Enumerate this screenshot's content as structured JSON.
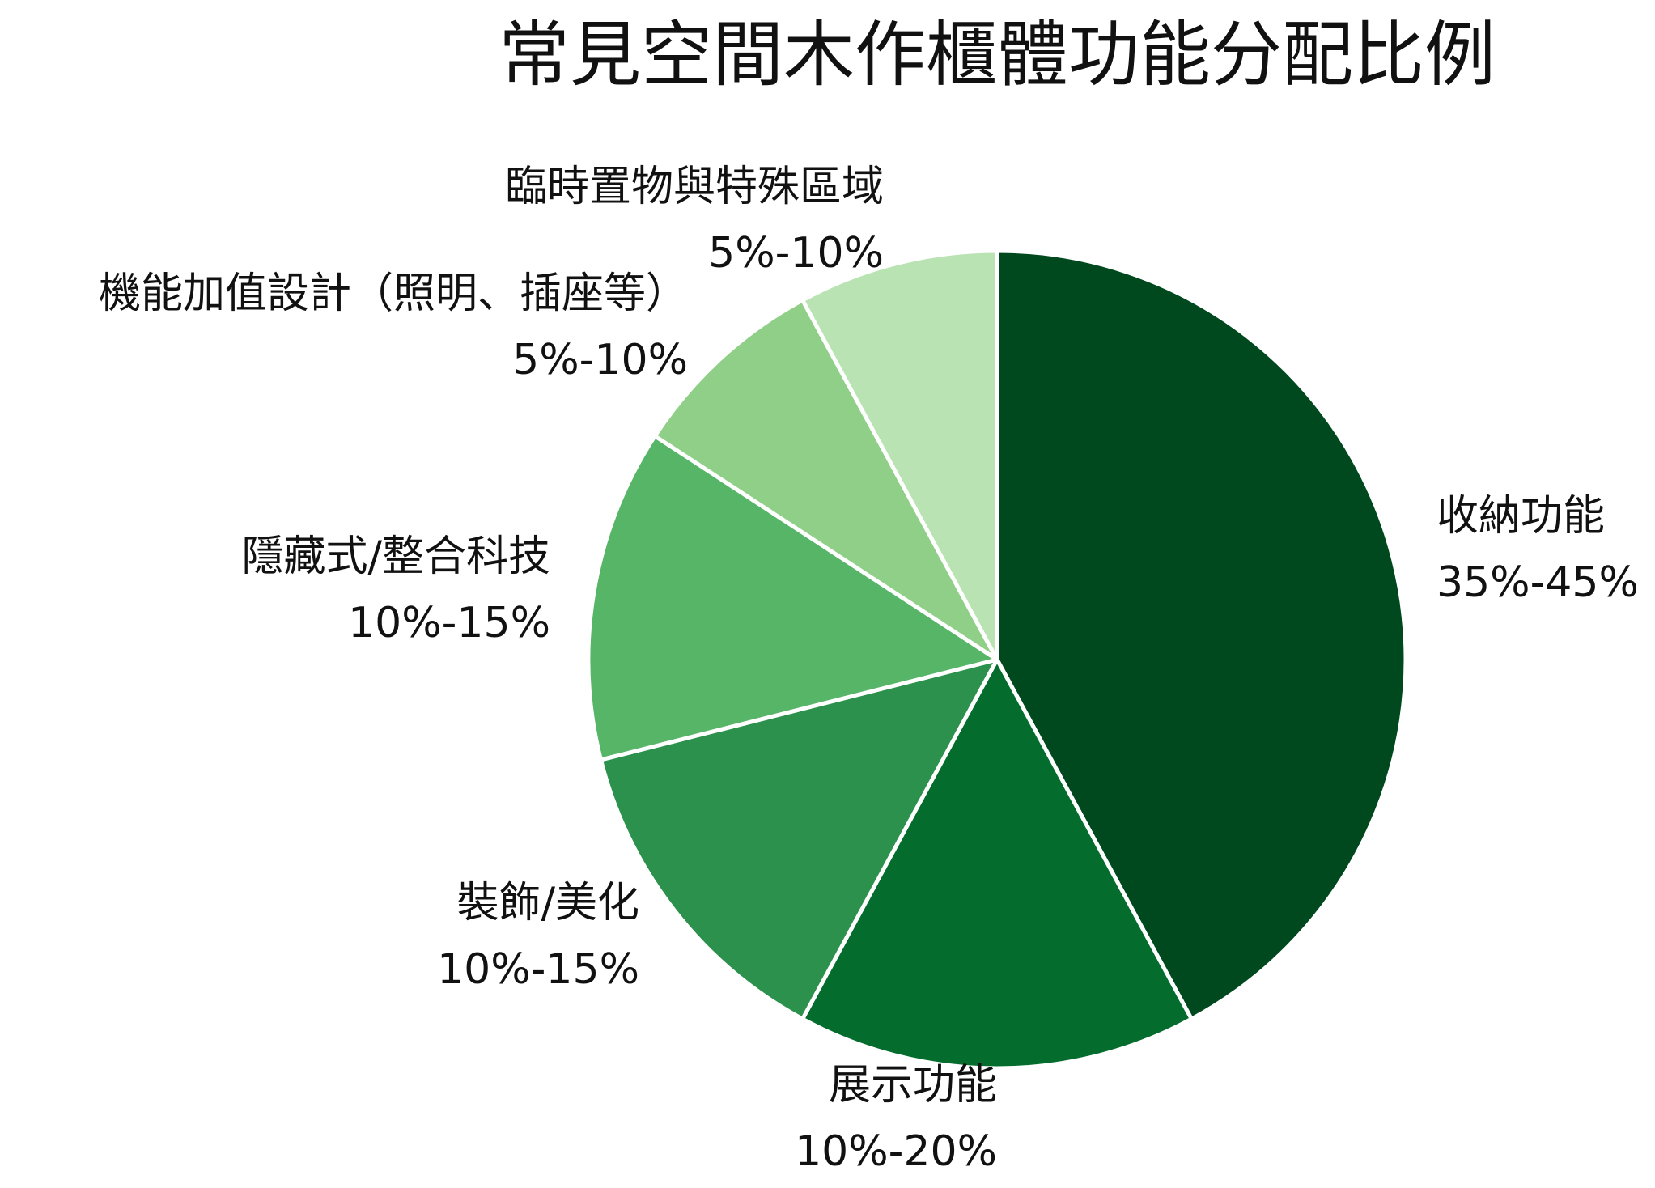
{
  "chart_data": {
    "type": "pie",
    "title": "常見空間木作櫃體功能分配比例",
    "start": "12 o'clock",
    "direction": "clockwise",
    "slices": [
      {
        "label": "收納功能",
        "range": "35%-45%",
        "value": 40,
        "color": "#00491e"
      },
      {
        "label": "展示功能",
        "range": "10%-20%",
        "value": 15,
        "color": "#046d2d"
      },
      {
        "label": "裝飾/美化",
        "range": "10%-15%",
        "value": 12.5,
        "color": "#2c914c"
      },
      {
        "label": "隱藏式/整合科技",
        "range": "10%-15%",
        "value": 12.5,
        "color": "#57b567"
      },
      {
        "label": "機能加值設計（照明、插座等）",
        "range": "5%-10%",
        "value": 7.5,
        "color": "#90cf88"
      },
      {
        "label": "臨時置物與特殊區域",
        "range": "5%-10%",
        "value": 7.5,
        "color": "#b9e3b2"
      }
    ]
  }
}
